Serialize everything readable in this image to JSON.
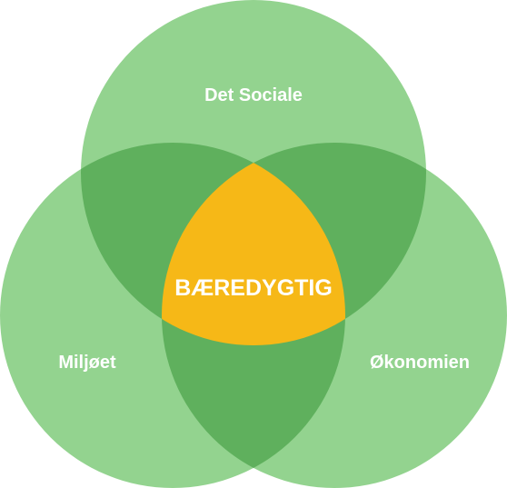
{
  "venn": {
    "top_label": "Det Sociale",
    "left_label": "Miljøet",
    "right_label": "Økonomien",
    "center_label": "BÆREDYGTIG"
  },
  "colors": {
    "circle": "#93d38f",
    "overlap": "#5fb05d",
    "center": "#f6b817",
    "text": "#ffffff"
  }
}
